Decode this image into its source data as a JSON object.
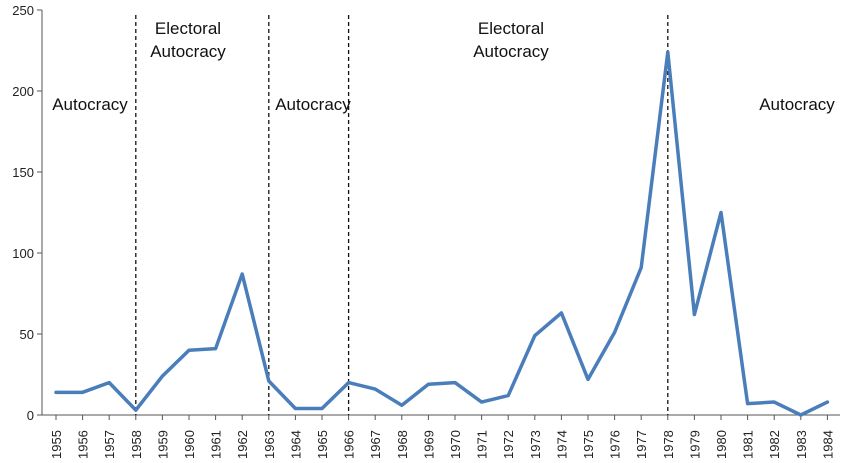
{
  "chart_data": {
    "type": "line",
    "title": "",
    "xlabel": "",
    "ylabel": "",
    "ylim": [
      0,
      250
    ],
    "yticks": [
      0,
      50,
      100,
      150,
      200,
      250
    ],
    "grid": false,
    "legend": "none",
    "x": [
      "1955",
      "1956",
      "1957",
      "1958",
      "1959",
      "1960",
      "1961",
      "1962",
      "1963",
      "1964",
      "1965",
      "1966",
      "1967",
      "1968",
      "1969",
      "1970",
      "1971",
      "1972",
      "1973",
      "1974",
      "1975",
      "1976",
      "1977",
      "1978",
      "1979",
      "1980",
      "1981",
      "1982",
      "1983",
      "1984"
    ],
    "series": [
      {
        "values": [
          14,
          14,
          20,
          3,
          24,
          40,
          41,
          87,
          21,
          4,
          4,
          20,
          16,
          6,
          19,
          20,
          8,
          12,
          49,
          63,
          22,
          51,
          91,
          224,
          62,
          125,
          7,
          8,
          0,
          8
        ],
        "color": "#4a7ebb"
      }
    ],
    "dividers": [
      "1958",
      "1963",
      "1966",
      "1978"
    ],
    "regions": [
      {
        "lines": [
          "Autocracy"
        ]
      },
      {
        "lines": [
          "Electoral",
          "Autocracy"
        ]
      },
      {
        "lines": [
          "Autocracy"
        ]
      },
      {
        "lines": [
          "Electoral",
          "Autocracy"
        ]
      },
      {
        "lines": [
          "Autocracy"
        ]
      }
    ]
  }
}
